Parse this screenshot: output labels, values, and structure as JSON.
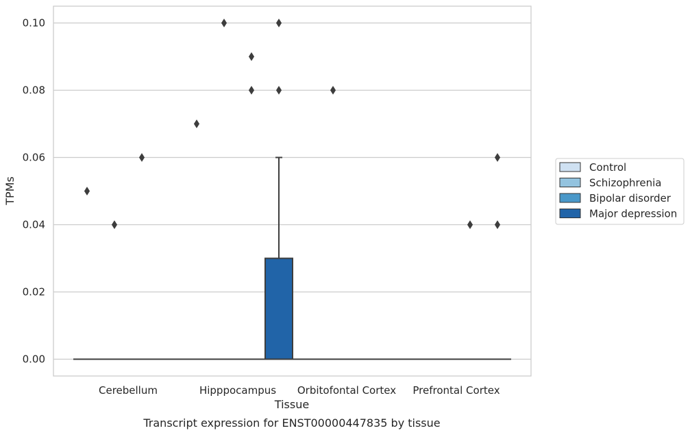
{
  "chart_data": {
    "type": "box",
    "xlabel": "Tissue",
    "ylabel": "TPMs",
    "caption": "Transcript expression for ENST00000447835 by tissue",
    "categories": [
      "Cerebellum",
      "Hipppocampus",
      "Orbitofontal Cortex",
      "Prefrontal Cortex"
    ],
    "ylim": [
      -0.005,
      0.105
    ],
    "yticks": [
      0.0,
      0.02,
      0.04,
      0.06,
      0.08,
      0.1
    ],
    "ytick_labels": [
      "0.00",
      "0.02",
      "0.04",
      "0.06",
      "0.08",
      "0.10"
    ],
    "grid": true,
    "legend_position": "right",
    "series": [
      {
        "name": "Control",
        "color": "#cfe1f2",
        "boxes": [
          {
            "category": "Cerebellum",
            "q1": 0,
            "median": 0,
            "q3": 0,
            "whislo": 0,
            "whishi": 0,
            "fliers": [
              0.05
            ]
          },
          {
            "category": "Hipppocampus",
            "q1": 0,
            "median": 0,
            "q3": 0,
            "whislo": 0,
            "whishi": 0,
            "fliers": [
              0.07
            ]
          },
          {
            "category": "Orbitofontal Cortex",
            "q1": 0,
            "median": 0,
            "q3": 0,
            "whislo": 0,
            "whishi": 0,
            "fliers": []
          },
          {
            "category": "Prefrontal Cortex",
            "q1": 0,
            "median": 0,
            "q3": 0,
            "whislo": 0,
            "whishi": 0,
            "fliers": []
          }
        ]
      },
      {
        "name": "Schizophrenia",
        "color": "#93c3df",
        "boxes": [
          {
            "category": "Cerebellum",
            "q1": 0,
            "median": 0,
            "q3": 0,
            "whislo": 0,
            "whishi": 0,
            "fliers": [
              0.04
            ]
          },
          {
            "category": "Hipppocampus",
            "q1": 0,
            "median": 0,
            "q3": 0,
            "whislo": 0,
            "whishi": 0,
            "fliers": [
              0.1
            ]
          },
          {
            "category": "Orbitofontal Cortex",
            "q1": 0,
            "median": 0,
            "q3": 0,
            "whislo": 0,
            "whishi": 0,
            "fliers": [
              0.08
            ]
          },
          {
            "category": "Prefrontal Cortex",
            "q1": 0,
            "median": 0,
            "q3": 0,
            "whislo": 0,
            "whishi": 0,
            "fliers": []
          }
        ]
      },
      {
        "name": "Bipolar disorder",
        "color": "#4a98c9",
        "boxes": [
          {
            "category": "Cerebellum",
            "q1": 0,
            "median": 0,
            "q3": 0,
            "whislo": 0,
            "whishi": 0,
            "fliers": [
              0.06
            ]
          },
          {
            "category": "Hipppocampus",
            "q1": 0,
            "median": 0,
            "q3": 0,
            "whislo": 0,
            "whishi": 0,
            "fliers": [
              0.08,
              0.09
            ]
          },
          {
            "category": "Orbitofontal Cortex",
            "q1": 0,
            "median": 0,
            "q3": 0,
            "whislo": 0,
            "whishi": 0,
            "fliers": []
          },
          {
            "category": "Prefrontal Cortex",
            "q1": 0,
            "median": 0,
            "q3": 0,
            "whislo": 0,
            "whishi": 0,
            "fliers": [
              0.04
            ]
          }
        ]
      },
      {
        "name": "Major depression",
        "color": "#2164a8",
        "boxes": [
          {
            "category": "Cerebellum",
            "q1": 0,
            "median": 0,
            "q3": 0,
            "whislo": 0,
            "whishi": 0,
            "fliers": []
          },
          {
            "category": "Hipppocampus",
            "q1": 0,
            "median": 0,
            "q3": 0.03,
            "whislo": 0,
            "whishi": 0.06,
            "fliers": [
              0.08,
              0.1
            ]
          },
          {
            "category": "Orbitofontal Cortex",
            "q1": 0,
            "median": 0,
            "q3": 0,
            "whislo": 0,
            "whishi": 0,
            "fliers": []
          },
          {
            "category": "Prefrontal Cortex",
            "q1": 0,
            "median": 0,
            "q3": 0,
            "whislo": 0,
            "whishi": 0,
            "fliers": [
              0.04,
              0.06
            ]
          }
        ]
      }
    ]
  }
}
